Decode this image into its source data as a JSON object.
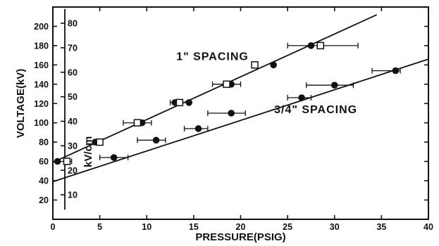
{
  "chart_data": {
    "type": "scatter",
    "xlabel": "PRESSURE(PSIG)",
    "ylabel": "VOLTAGE(kV)",
    "ylabel_secondary": "kV/cm",
    "xlim": [
      0,
      40
    ],
    "ylim": [
      0,
      220
    ],
    "x_ticks": [
      "0",
      "5",
      "10",
      "15",
      "20",
      "25",
      "30",
      "35",
      "40"
    ],
    "y_ticks": [
      "20",
      "40",
      "60",
      "80",
      "100",
      "120",
      "140",
      "160",
      "180",
      "200"
    ],
    "y2_ticks": [
      {
        "label": "10",
        "y": 25.4
      },
      {
        "label": "20",
        "y": 50.8
      },
      {
        "label": "30",
        "y": 76.2
      },
      {
        "label": "40",
        "y": 101.6
      },
      {
        "label": "50",
        "y": 127.0
      },
      {
        "label": "60",
        "y": 152.4
      },
      {
        "label": "70",
        "y": 177.8
      },
      {
        "label": "80",
        "y": 203.2
      }
    ],
    "annotations": [
      {
        "text": "1\" SPACING",
        "x": 17,
        "y": 165
      },
      {
        "text": "3/4\" SPACING",
        "x": 28,
        "y": 110
      }
    ],
    "fit_lines": [
      {
        "name": "1\" SPACING",
        "x": [
          0,
          34.5
        ],
        "y": [
          59,
          212
        ]
      },
      {
        "name": "3/4\" SPACING",
        "x": [
          0,
          40
        ],
        "y": [
          39,
          166
        ]
      }
    ],
    "series": [
      {
        "name": "1\" SPACING",
        "marker": "circle",
        "points": [
          {
            "x": 0.5,
            "y": 60
          },
          {
            "x": 4.5,
            "y": 80
          },
          {
            "x": 9.5,
            "y": 100
          },
          {
            "x": 13,
            "y": 121
          },
          {
            "x": 14.5,
            "y": 121
          },
          {
            "x": 19,
            "y": 140
          },
          {
            "x": 23.5,
            "y": 160
          },
          {
            "x": 27.5,
            "y": 180
          }
        ]
      },
      {
        "name": "1\" SPACING",
        "marker": "square",
        "points": [
          {
            "x": 1.5,
            "y": 60,
            "xerr": [
              0.5,
              2.0
            ]
          },
          {
            "x": 5,
            "y": 80
          },
          {
            "x": 9,
            "y": 100,
            "xerr": [
              7.5,
              10.5
            ]
          },
          {
            "x": 13.5,
            "y": 121,
            "xerr": [
              12.5,
              14.5
            ]
          },
          {
            "x": 18.5,
            "y": 140,
            "xerr": [
              17,
              20
            ]
          },
          {
            "x": 21.5,
            "y": 160
          },
          {
            "x": 28.5,
            "y": 180,
            "xerr": [
              25,
              32.5
            ]
          }
        ]
      },
      {
        "name": "3/4\" SPACING",
        "marker": "circle",
        "points": [
          {
            "x": 6.5,
            "y": 64,
            "xerr": [
              5,
              8
            ]
          },
          {
            "x": 11,
            "y": 82,
            "xerr": [
              9,
              12
            ]
          },
          {
            "x": 15.5,
            "y": 94,
            "xerr": [
              14,
              16.5
            ]
          },
          {
            "x": 19,
            "y": 110,
            "xerr": [
              16.5,
              20.5
            ]
          },
          {
            "x": 26.5,
            "y": 126,
            "xerr": [
              25,
              27.5
            ]
          },
          {
            "x": 30,
            "y": 139,
            "xerr": [
              27,
              32
            ]
          },
          {
            "x": 36.5,
            "y": 154,
            "xerr": [
              34,
              37
            ]
          }
        ]
      }
    ]
  }
}
